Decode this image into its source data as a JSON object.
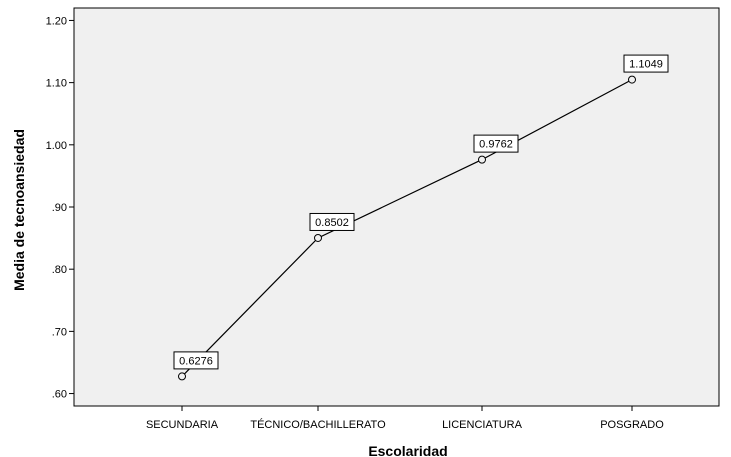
{
  "chart_data": {
    "type": "line",
    "title": "",
    "xlabel": "Escolaridad",
    "ylabel": "Media de tecnoansiedad",
    "categories": [
      "SECUNDARIA",
      "TÉCNICO/BACHILLERATO",
      "LICENCIATURA",
      "POSGRADO"
    ],
    "series": [
      {
        "values": [
          0.6276,
          0.8502,
          0.9762,
          1.1049
        ]
      }
    ],
    "data_labels": [
      "0.6276",
      "0.8502",
      "0.9762",
      "1.1049"
    ],
    "ylim": [
      0.58,
      1.22
    ],
    "yticks": [
      0.6,
      0.7,
      0.8,
      0.9,
      1.0,
      1.1,
      1.2
    ],
    "ytick_labels": [
      ".60",
      ".70",
      ".80",
      ".90",
      "1.00",
      "1.10",
      "1.20"
    ],
    "grid": false,
    "legend": "none",
    "colors": {
      "plot_background": "#f0f0f0",
      "line": "#000000",
      "marker_fill": "#f0f0f0"
    }
  }
}
